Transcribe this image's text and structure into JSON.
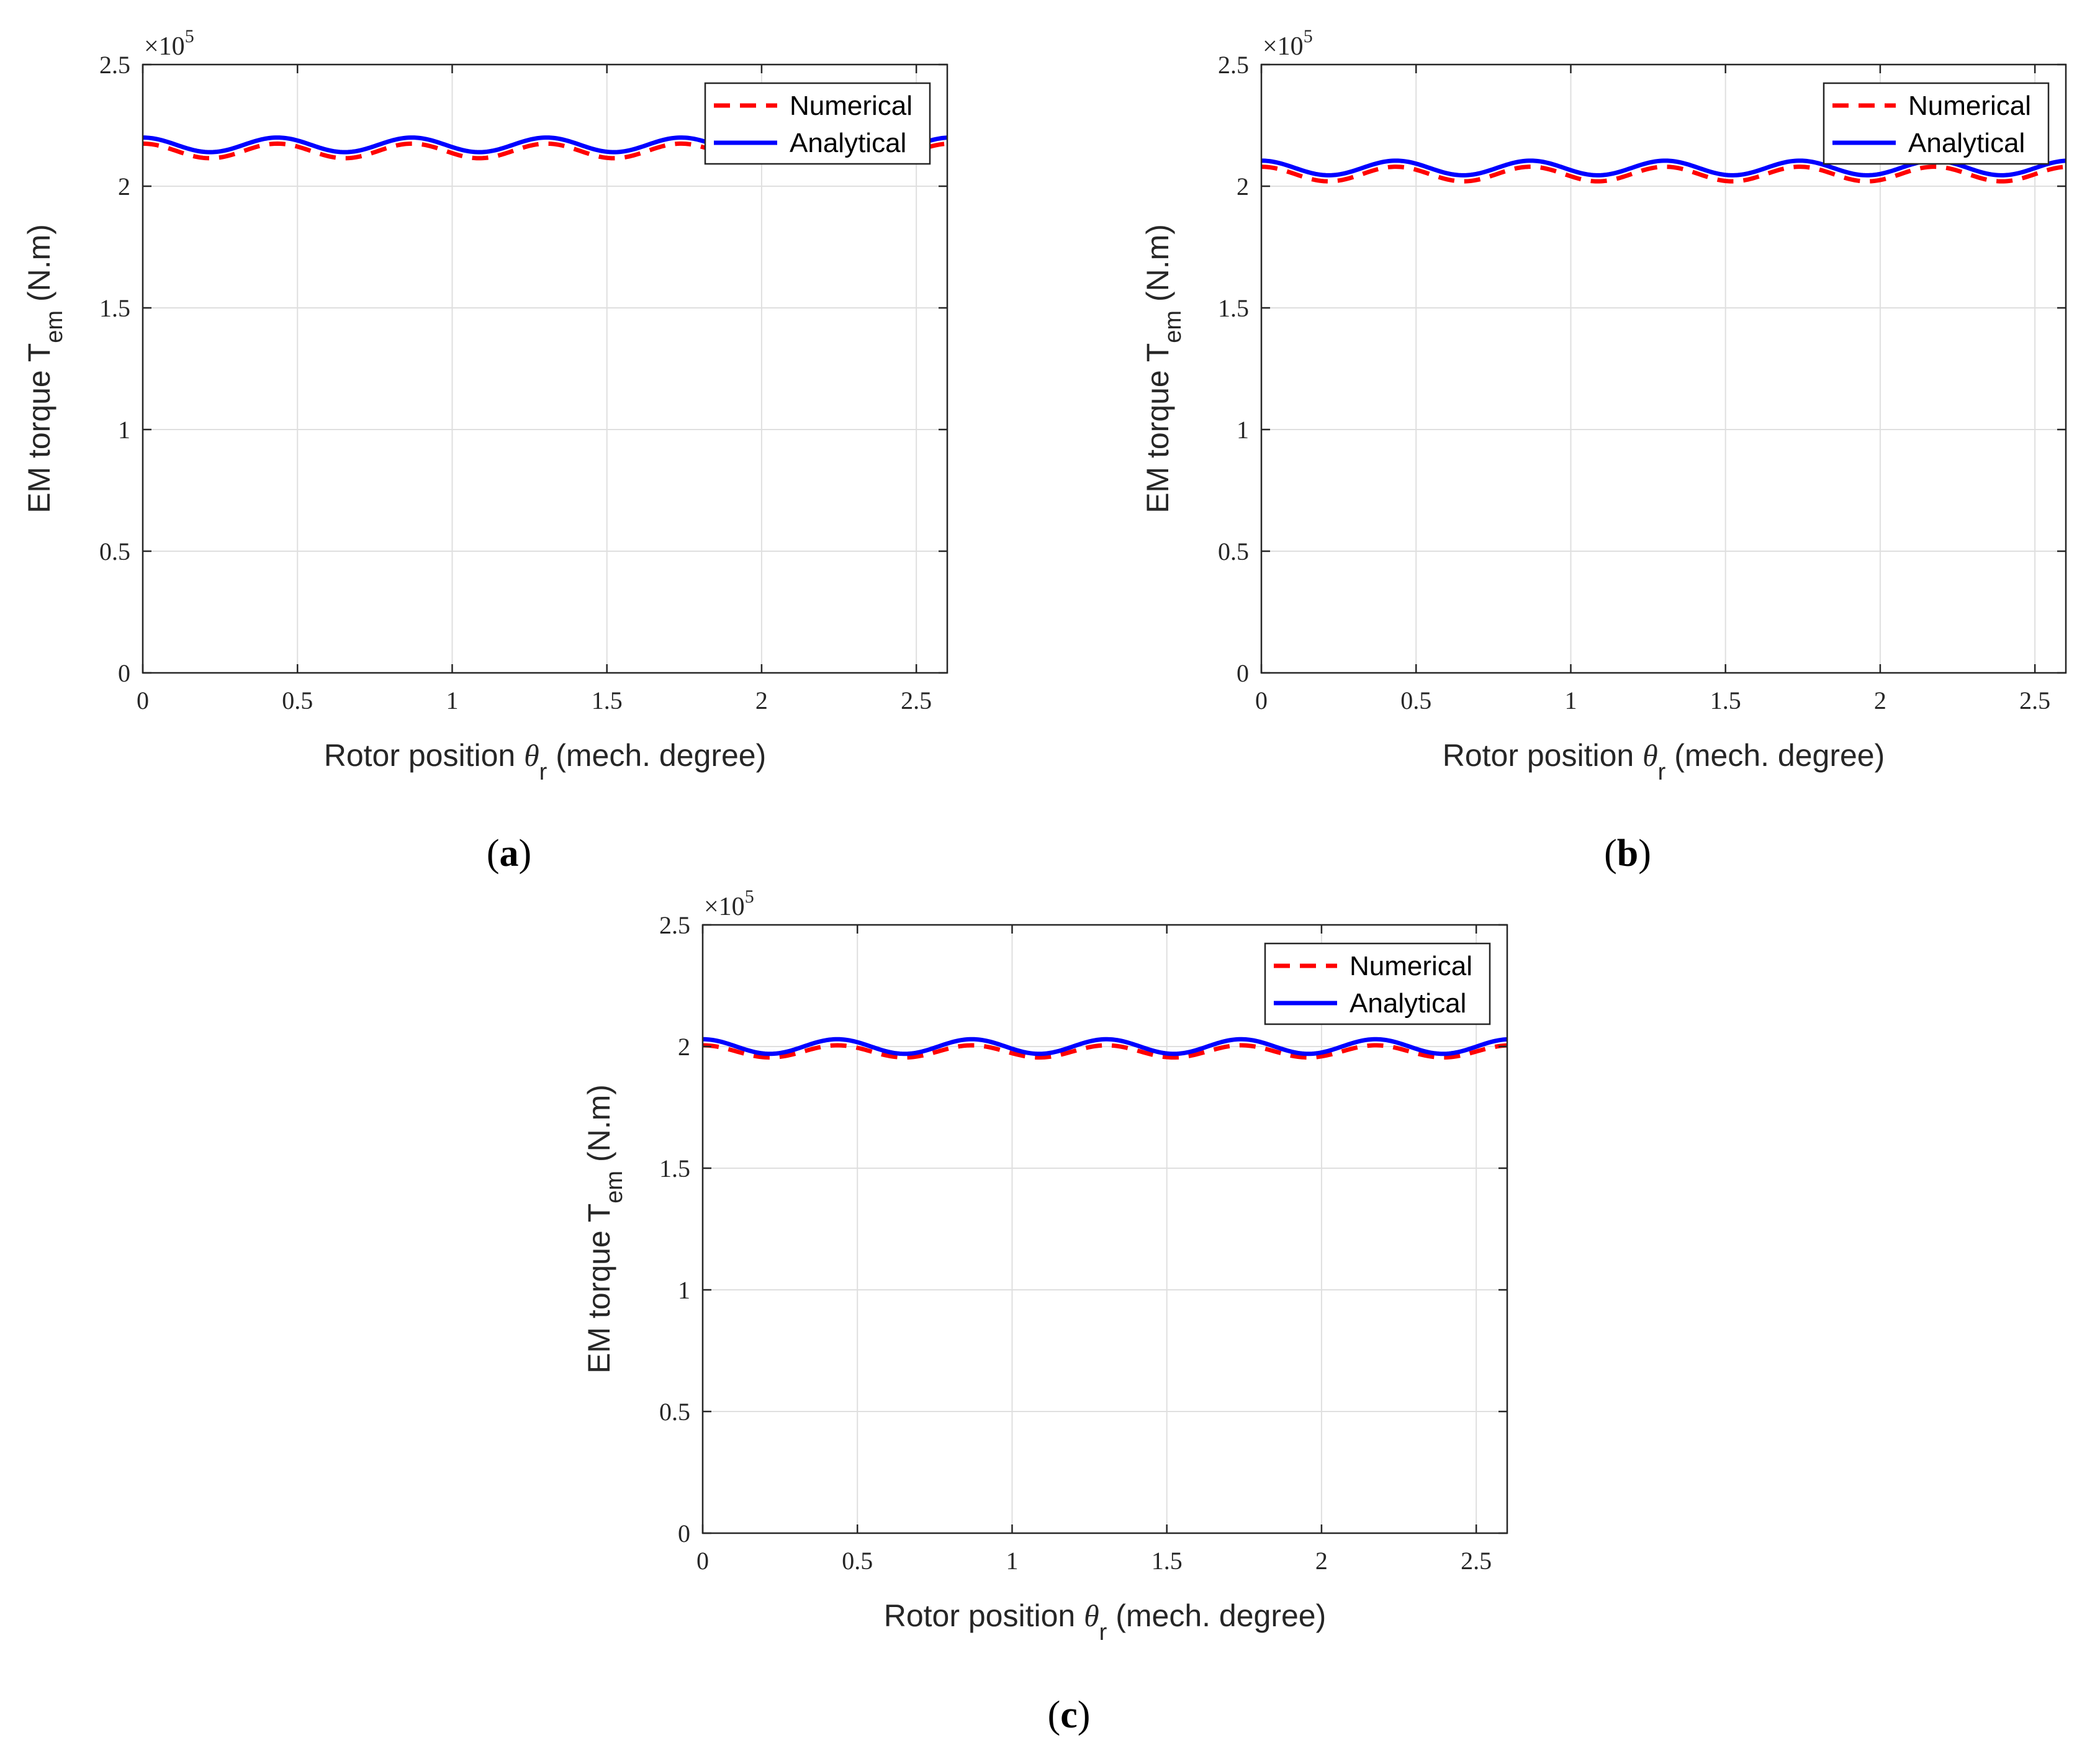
{
  "chart_data": [
    {
      "type": "line",
      "panel_label": "(a)",
      "xlabel": {
        "prefix": "Rotor position ",
        "symbol": "θ",
        "sub": "r",
        "suffix": " (mech. degree)"
      },
      "ylabel": {
        "prefix": "EM torque T",
        "sub": "em",
        "suffix": " (N.m)"
      },
      "y_multiplier": "×10",
      "y_multiplier_exp": "5",
      "xlim": [
        0,
        2.6
      ],
      "ylim": [
        0,
        2.5
      ],
      "x_ticks": [
        "0",
        "0.5",
        "1",
        "1.5",
        "2",
        "2.5"
      ],
      "y_ticks": [
        "0",
        "0.5",
        "1",
        "1.5",
        "2",
        "2.5"
      ],
      "grid": true,
      "legend_position": "top-right",
      "series": [
        {
          "name": "Numerical",
          "style": "dashed",
          "color": "#ff0000",
          "mean": 2.145,
          "amplitude": 0.03,
          "period": 0.435,
          "phase": 0.0
        },
        {
          "name": "Analytical",
          "style": "solid",
          "color": "#0000ff",
          "mean": 2.17,
          "amplitude": 0.03,
          "period": 0.435,
          "phase": 0.0
        }
      ]
    },
    {
      "type": "line",
      "panel_label": "(b)",
      "xlabel": {
        "prefix": "Rotor position ",
        "symbol": "θ",
        "sub": "r",
        "suffix": " (mech. degree)"
      },
      "ylabel": {
        "prefix": "EM torque T",
        "sub": "em",
        "suffix": " (N.m)"
      },
      "y_multiplier": "×10",
      "y_multiplier_exp": "5",
      "xlim": [
        0,
        2.6
      ],
      "ylim": [
        0,
        2.5
      ],
      "x_ticks": [
        "0",
        "0.5",
        "1",
        "1.5",
        "2",
        "2.5"
      ],
      "y_ticks": [
        "0",
        "0.5",
        "1",
        "1.5",
        "2",
        "2.5"
      ],
      "grid": true,
      "legend_position": "top-right",
      "series": [
        {
          "name": "Numerical",
          "style": "dashed",
          "color": "#ff0000",
          "mean": 2.05,
          "amplitude": 0.03,
          "period": 0.435,
          "phase": 0.0
        },
        {
          "name": "Analytical",
          "style": "solid",
          "color": "#0000ff",
          "mean": 2.075,
          "amplitude": 0.03,
          "period": 0.435,
          "phase": 0.0
        }
      ]
    },
    {
      "type": "line",
      "panel_label": "(c)",
      "xlabel": {
        "prefix": "Rotor position ",
        "symbol": "θ",
        "sub": "r",
        "suffix": " (mech. degree)"
      },
      "ylabel": {
        "prefix": "EM torque T",
        "sub": "em",
        "suffix": " (N.m)"
      },
      "y_multiplier": "×10",
      "y_multiplier_exp": "5",
      "xlim": [
        0,
        2.6
      ],
      "ylim": [
        0,
        2.5
      ],
      "x_ticks": [
        "0",
        "0.5",
        "1",
        "1.5",
        "2",
        "2.5"
      ],
      "y_ticks": [
        "0",
        "0.5",
        "1",
        "1.5",
        "2",
        "2.5"
      ],
      "grid": true,
      "legend_position": "top-right",
      "series": [
        {
          "name": "Numerical",
          "style": "dashed",
          "color": "#ff0000",
          "mean": 1.98,
          "amplitude": 0.025,
          "period": 0.435,
          "phase": 0.0
        },
        {
          "name": "Analytical",
          "style": "solid",
          "color": "#0000ff",
          "mean": 2.0,
          "amplitude": 0.03,
          "period": 0.435,
          "phase": 0.0
        }
      ]
    }
  ]
}
